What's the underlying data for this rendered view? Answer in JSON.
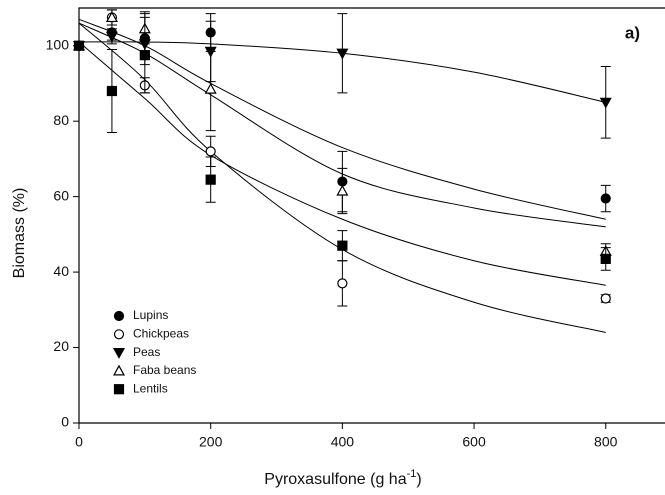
{
  "chart_data": {
    "type": "scatter",
    "panel_label": "a)",
    "y_label": "Biomass (%)",
    "x_label": [
      "Pyroxasulfone (g ha",
      "-1",
      ")"
    ],
    "x": [
      0,
      50,
      100,
      200,
      400,
      800
    ],
    "fit_x": [
      0,
      100,
      200,
      400,
      600,
      800
    ],
    "xlim": [
      0,
      890
    ],
    "ylim": [
      0,
      110
    ],
    "xticks": [
      0,
      200,
      400,
      600,
      800
    ],
    "yticks": [
      0,
      20,
      40,
      60,
      80,
      100
    ],
    "color": "#000000",
    "series": [
      {
        "name": "Lupins",
        "marker": "circle",
        "filled": true,
        "values": [
          100,
          103.5,
          102,
          103.5,
          64,
          59.5
        ],
        "errors": [
          0,
          2,
          7,
          5,
          8,
          3.5
        ],
        "fit": [
          107,
          100,
          90,
          73,
          62,
          54
        ]
      },
      {
        "name": "Chickpeas",
        "marker": "circle",
        "filled": false,
        "values": [
          100,
          107.5,
          89.5,
          72,
          37,
          33
        ],
        "errors": [
          0,
          2,
          2,
          4,
          6,
          1
        ],
        "fit": [
          106,
          91,
          72,
          46,
          32,
          24
        ]
      },
      {
        "name": "Peas",
        "marker": "triangle-down",
        "filled": true,
        "values": [
          100,
          102.5,
          100.5,
          98.5,
          98,
          85
        ],
        "errors": [
          0,
          2,
          3,
          8,
          10.5,
          9.5
        ],
        "fit": [
          101,
          101,
          100.5,
          98,
          93,
          85
        ]
      },
      {
        "name": "Faba beans",
        "marker": "triangle-up",
        "filled": false,
        "values": [
          100,
          107.5,
          104.5,
          88.5,
          61.5,
          45.5
        ],
        "errors": [
          0,
          2,
          4,
          11,
          6,
          2
        ],
        "fit": [
          106,
          98,
          87,
          66,
          57,
          52
        ]
      },
      {
        "name": "Lentils",
        "marker": "square",
        "filled": true,
        "values": [
          100,
          88,
          97.5,
          64.5,
          47,
          43.5
        ],
        "errors": [
          0,
          11,
          10,
          6,
          4,
          3
        ],
        "fit": [
          101,
          86,
          71,
          54,
          43,
          36.5
        ]
      }
    ]
  }
}
